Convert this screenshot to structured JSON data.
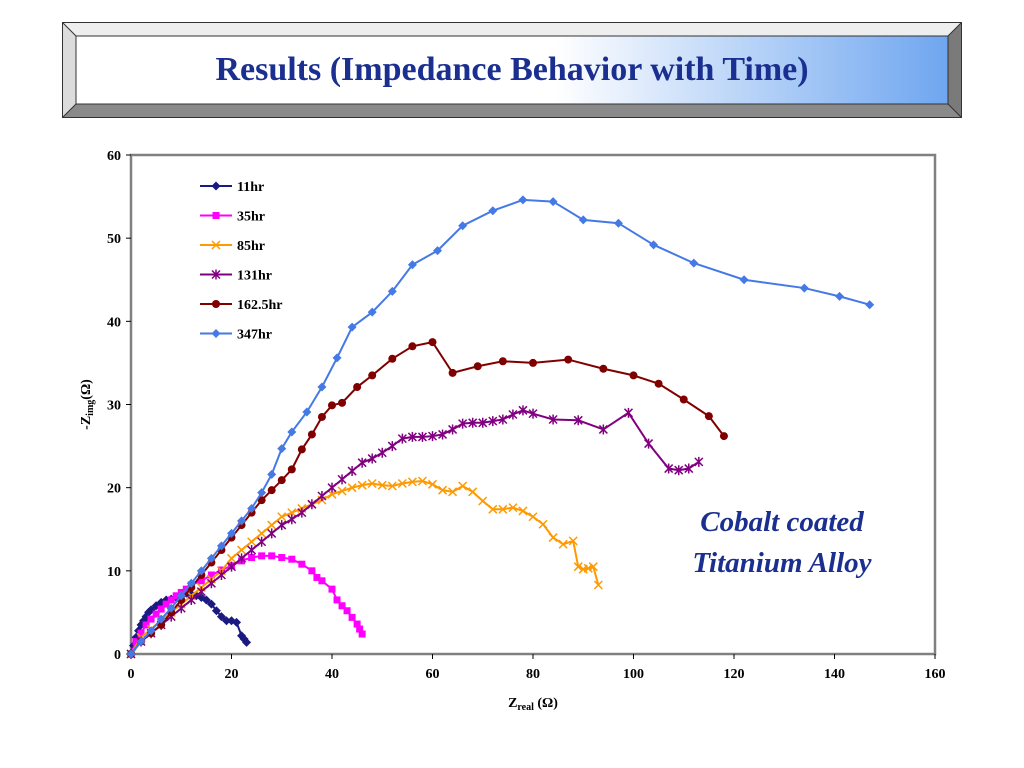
{
  "slide": {
    "title": "Results (Impedance Behavior with Time)",
    "annotation": [
      "Cobalt coated",
      "Titanium Alloy"
    ]
  },
  "colors": {
    "title": "#1a2f8f",
    "banner_gradient": [
      "#ffffff",
      "#6fa6f0"
    ],
    "plot_border": "#808080"
  },
  "chart_data": {
    "type": "scatter",
    "xlabel_main": "Z",
    "xlabel_sub": "real",
    "xlabel_unit": "(Ω)",
    "ylabel_prefix": "-Z",
    "ylabel_sub": "img",
    "ylabel_unit": "(Ω)",
    "xlim": [
      0,
      160
    ],
    "ylim": [
      0,
      60
    ],
    "xticks": [
      "0",
      "20",
      "40",
      "60",
      "80",
      "100",
      "120",
      "140",
      "160"
    ],
    "yticks": [
      "0",
      "10",
      "20",
      "30",
      "40",
      "50",
      "60"
    ],
    "grid": false,
    "legend_position": "top-left",
    "series": [
      {
        "name": "11hr",
        "color": "#1a1a80",
        "marker": "diamond",
        "x": [
          0,
          0.5,
          1,
          1.5,
          2,
          2.5,
          3,
          3.5,
          4,
          5,
          6,
          7,
          8,
          9,
          10,
          11,
          12,
          13,
          14,
          15,
          16,
          17,
          18,
          19,
          20,
          21,
          22,
          22.5,
          23
        ],
        "y": [
          0,
          1,
          2,
          2.8,
          3.5,
          4,
          4.5,
          5,
          5.3,
          5.8,
          6.2,
          6.5,
          6.6,
          6.8,
          7.1,
          7.3,
          7.2,
          7,
          6.8,
          6.5,
          6,
          5.2,
          4.5,
          4,
          4,
          3.8,
          2.2,
          1.8,
          1.4
        ]
      },
      {
        "name": "35hr",
        "color": "#ff00ff",
        "marker": "square",
        "x": [
          0,
          1,
          2,
          3,
          4,
          5,
          6,
          7,
          8,
          9,
          10,
          11,
          12,
          14,
          16,
          18,
          20,
          22,
          24,
          26,
          28,
          30,
          32,
          34,
          36,
          37,
          38,
          40,
          41,
          42,
          43,
          44,
          45,
          45.5,
          46
        ],
        "y": [
          0,
          1.5,
          2.5,
          3.5,
          4.2,
          4.8,
          5.4,
          6,
          6.5,
          7,
          7.4,
          7.8,
          8.3,
          8.8,
          9.5,
          10.1,
          10.6,
          11.2,
          11.6,
          11.8,
          11.8,
          11.6,
          11.4,
          10.8,
          10,
          9.2,
          8.8,
          7.8,
          6.5,
          5.8,
          5.2,
          4.4,
          3.6,
          3,
          2.4
        ]
      },
      {
        "name": "85hr",
        "color": "#ff9900",
        "marker": "x",
        "x": [
          0,
          2,
          4,
          6,
          8,
          10,
          12,
          14,
          16,
          18,
          20,
          22,
          24,
          26,
          28,
          30,
          32,
          34,
          36,
          38,
          40,
          42,
          44,
          46,
          48,
          50,
          52,
          54,
          56,
          58,
          60,
          62,
          64,
          66,
          68,
          70,
          72,
          74,
          76,
          78,
          80,
          82,
          84,
          86,
          88,
          89,
          90,
          91,
          92,
          93
        ],
        "y": [
          0,
          2,
          3,
          4,
          5,
          6,
          7,
          8,
          9,
          10,
          11.5,
          12.5,
          13.5,
          14.5,
          15.5,
          16.5,
          17,
          17.5,
          18,
          18.5,
          19.2,
          19.6,
          20,
          20.3,
          20.5,
          20.3,
          20.2,
          20.5,
          20.7,
          20.8,
          20.4,
          19.7,
          19.5,
          20.2,
          19.5,
          18.4,
          17.4,
          17.4,
          17.6,
          17.2,
          16.5,
          15.6,
          14,
          13.2,
          13.6,
          10.5,
          10.2,
          10.3,
          10.5,
          8.3
        ]
      },
      {
        "name": "131hr",
        "color": "#800080",
        "marker": "asterisk",
        "x": [
          0,
          2,
          4,
          6,
          8,
          10,
          12,
          14,
          16,
          18,
          20,
          22,
          24,
          26,
          28,
          30,
          32,
          34,
          36,
          38,
          40,
          42,
          44,
          46,
          48,
          50,
          52,
          54,
          56,
          58,
          60,
          62,
          64,
          66,
          68,
          70,
          72,
          74,
          76,
          78,
          80,
          84,
          89,
          94,
          99,
          103,
          107,
          109,
          111,
          113
        ],
        "y": [
          0,
          1.5,
          2.5,
          3.5,
          4.5,
          5.5,
          6.5,
          7.5,
          8.5,
          9.5,
          10.5,
          11.5,
          12.5,
          13.5,
          14.5,
          15.5,
          16.2,
          17,
          18,
          19,
          20,
          21,
          22,
          23,
          23.5,
          24.2,
          25,
          25.9,
          26.1,
          26.1,
          26.2,
          26.4,
          27,
          27.7,
          27.8,
          27.8,
          28,
          28.2,
          28.8,
          29.3,
          28.9,
          28.2,
          28.1,
          27,
          29,
          25.3,
          22.3,
          22.1,
          22.3,
          23.1
        ]
      },
      {
        "name": "162.5hr",
        "color": "#800000",
        "marker": "circle",
        "x": [
          0,
          2,
          4,
          6,
          8,
          10,
          12,
          14,
          16,
          18,
          20,
          22,
          24,
          26,
          28,
          30,
          32,
          34,
          36,
          38,
          40,
          42,
          45,
          48,
          52,
          56,
          60,
          64,
          69,
          74,
          80,
          87,
          94,
          100,
          105,
          110,
          115,
          118
        ],
        "y": [
          0,
          1.5,
          2.5,
          3.5,
          5,
          6.5,
          8,
          9.5,
          11,
          12.5,
          14,
          15.5,
          17,
          18.5,
          19.7,
          20.9,
          22.2,
          24.6,
          26.4,
          28.5,
          29.9,
          30.2,
          32.1,
          33.5,
          35.5,
          37,
          37.5,
          33.8,
          34.6,
          35.2,
          35,
          35.4,
          34.3,
          33.5,
          32.5,
          30.6,
          28.6,
          26.2
        ]
      },
      {
        "name": "347hr",
        "color": "#4479e6",
        "marker": "diamond",
        "x": [
          0,
          2,
          4,
          6,
          8,
          10,
          12,
          14,
          16,
          18,
          20,
          22,
          24,
          26,
          28,
          30,
          32,
          35,
          38,
          41,
          44,
          48,
          52,
          56,
          61,
          66,
          72,
          78,
          84,
          90,
          97,
          104,
          112,
          122,
          134,
          141,
          147
        ],
        "y": [
          0,
          1.5,
          2.8,
          4.2,
          5.5,
          7,
          8.5,
          10,
          11.5,
          13,
          14.5,
          16,
          17.5,
          19.4,
          21.6,
          24.7,
          26.7,
          29.1,
          32.1,
          35.6,
          39.3,
          41.1,
          43.6,
          46.8,
          48.5,
          51.5,
          53.3,
          54.6,
          54.4,
          52.2,
          51.8,
          49.2,
          47,
          45,
          44,
          43,
          42
        ]
      }
    ]
  }
}
